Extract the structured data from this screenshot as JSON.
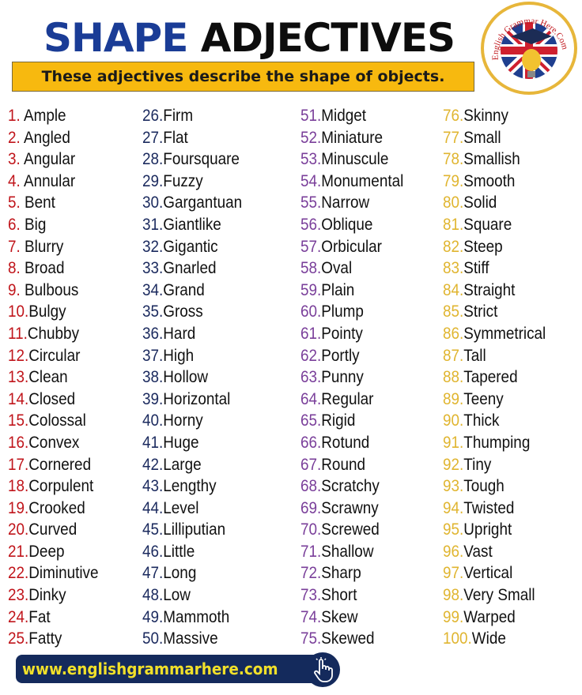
{
  "title": {
    "part1": "SHAPE",
    "part2": "ADJECTIVES"
  },
  "subtitle": "These adjectives describe the shape of objects.",
  "logo": {
    "text": "English Grammar Here.Com",
    "icon": "graduation-cap-lightbulb-uk-flag-logo"
  },
  "colors": {
    "col1": "#c0151b",
    "col2": "#1b2a5e",
    "col3": "#7a3f9a",
    "col4": "#e0b530",
    "title_blue": "#1a3c96",
    "banner": "#f7b90f",
    "footer_bg": "#142a5c",
    "footer_text": "#f1e02a"
  },
  "columns": [
    {
      "items": [
        {
          "num": "1. ",
          "word": "Ample"
        },
        {
          "num": "2. ",
          "word": "Angled"
        },
        {
          "num": "3. ",
          "word": "Angular"
        },
        {
          "num": "4. ",
          "word": "Annular"
        },
        {
          "num": "5. ",
          "word": "Bent"
        },
        {
          "num": "6. ",
          "word": "Big"
        },
        {
          "num": "7. ",
          "word": "Blurry"
        },
        {
          "num": "8. ",
          "word": "Broad"
        },
        {
          "num": "9. ",
          "word": "Bulbous"
        },
        {
          "num": "10.",
          "word": "Bulgy"
        },
        {
          "num": "11.",
          "word": "Chubby"
        },
        {
          "num": "12.",
          "word": "Circular"
        },
        {
          "num": "13.",
          "word": "Clean"
        },
        {
          "num": "14.",
          "word": "Closed"
        },
        {
          "num": "15.",
          "word": "Colossal"
        },
        {
          "num": "16.",
          "word": "Convex"
        },
        {
          "num": "17.",
          "word": "Cornered"
        },
        {
          "num": "18.",
          "word": "Corpulent"
        },
        {
          "num": "19.",
          "word": "Crooked"
        },
        {
          "num": "20.",
          "word": "Curved"
        },
        {
          "num": "21.",
          "word": "Deep"
        },
        {
          "num": "22.",
          "word": "Diminutive"
        },
        {
          "num": "23.",
          "word": "Dinky"
        },
        {
          "num": "24.",
          "word": "Fat"
        },
        {
          "num": "25.",
          "word": "Fatty"
        }
      ]
    },
    {
      "items": [
        {
          "num": "26.",
          "word": "Firm"
        },
        {
          "num": "27.",
          "word": "Flat"
        },
        {
          "num": "28.",
          "word": "Foursquare"
        },
        {
          "num": "29.",
          "word": "Fuzzy"
        },
        {
          "num": "30.",
          "word": "Gargantuan"
        },
        {
          "num": "31.",
          "word": "Giantlike"
        },
        {
          "num": "32.",
          "word": "Gigantic"
        },
        {
          "num": "33.",
          "word": "Gnarled"
        },
        {
          "num": "34.",
          "word": "Grand"
        },
        {
          "num": "35.",
          "word": "Gross"
        },
        {
          "num": "36.",
          "word": "Hard"
        },
        {
          "num": "37.",
          "word": "High"
        },
        {
          "num": "38.",
          "word": "Hollow"
        },
        {
          "num": "39.",
          "word": "Horizontal"
        },
        {
          "num": "40.",
          "word": "Horny"
        },
        {
          "num": "41.",
          "word": "Huge"
        },
        {
          "num": "42.",
          "word": "Large"
        },
        {
          "num": "43.",
          "word": "Lengthy"
        },
        {
          "num": "44.",
          "word": "Level"
        },
        {
          "num": "45.",
          "word": "Lilliputian"
        },
        {
          "num": "46.",
          "word": "Little"
        },
        {
          "num": "47.",
          "word": "Long"
        },
        {
          "num": "48.",
          "word": "Low"
        },
        {
          "num": "49.",
          "word": "Mammoth"
        },
        {
          "num": "50.",
          "word": "Massive"
        }
      ]
    },
    {
      "items": [
        {
          "num": "51.",
          "word": "Midget"
        },
        {
          "num": "52.",
          "word": "Miniature"
        },
        {
          "num": "53.",
          "word": "Minuscule"
        },
        {
          "num": "54.",
          "word": "Monumental"
        },
        {
          "num": "55.",
          "word": "Narrow"
        },
        {
          "num": "56.",
          "word": "Oblique"
        },
        {
          "num": "57.",
          "word": "Orbicular"
        },
        {
          "num": "58.",
          "word": "Oval"
        },
        {
          "num": "59.",
          "word": "Plain"
        },
        {
          "num": "60.",
          "word": "Plump"
        },
        {
          "num": "61.",
          "word": "Pointy"
        },
        {
          "num": "62.",
          "word": "Portly"
        },
        {
          "num": "63.",
          "word": "Punny"
        },
        {
          "num": "64.",
          "word": "Regular"
        },
        {
          "num": "65.",
          "word": "Rigid"
        },
        {
          "num": "66.",
          "word": "Rotund"
        },
        {
          "num": "67.",
          "word": "Round"
        },
        {
          "num": "68.",
          "word": "Scratchy"
        },
        {
          "num": "69.",
          "word": "Scrawny"
        },
        {
          "num": "70.",
          "word": "Screwed"
        },
        {
          "num": "71.",
          "word": "Shallow"
        },
        {
          "num": "72.",
          "word": "Sharp"
        },
        {
          "num": "73.",
          "word": "Short"
        },
        {
          "num": "74.",
          "word": "Skew"
        },
        {
          "num": "75.",
          "word": "Skewed"
        }
      ]
    },
    {
      "items": [
        {
          "num": "76.",
          "word": "Skinny"
        },
        {
          "num": "77.",
          "word": "Small"
        },
        {
          "num": "78.",
          "word": "Smallish"
        },
        {
          "num": "79.",
          "word": "Smooth"
        },
        {
          "num": "80.",
          "word": "Solid"
        },
        {
          "num": "81.",
          "word": "Square"
        },
        {
          "num": "82.",
          "word": "Steep"
        },
        {
          "num": "83.",
          "word": "Stiff"
        },
        {
          "num": "84.",
          "word": "Straight"
        },
        {
          "num": "85.",
          "word": "Strict"
        },
        {
          "num": "86.",
          "word": "Symmetrical"
        },
        {
          "num": "87.",
          "word": "Tall"
        },
        {
          "num": "88.",
          "word": "Tapered"
        },
        {
          "num": "89.",
          "word": "Teeny"
        },
        {
          "num": "90.",
          "word": "Thick"
        },
        {
          "num": "91.",
          "word": "Thumping"
        },
        {
          "num": "92.",
          "word": "Tiny"
        },
        {
          "num": "93.",
          "word": "Tough"
        },
        {
          "num": "94.",
          "word": "Twisted"
        },
        {
          "num": "95.",
          "word": "Upright"
        },
        {
          "num": "96.",
          "word": "Vast"
        },
        {
          "num": "97.",
          "word": "Vertical"
        },
        {
          "num": "98.",
          "word": "Very Small"
        },
        {
          "num": "99.",
          "word": "Warped"
        },
        {
          "num": "100.",
          "word": "Wide"
        }
      ]
    }
  ],
  "footer": {
    "url": "www.englishgrammarhere.com",
    "icon": "pointer-hand-click-icon"
  }
}
